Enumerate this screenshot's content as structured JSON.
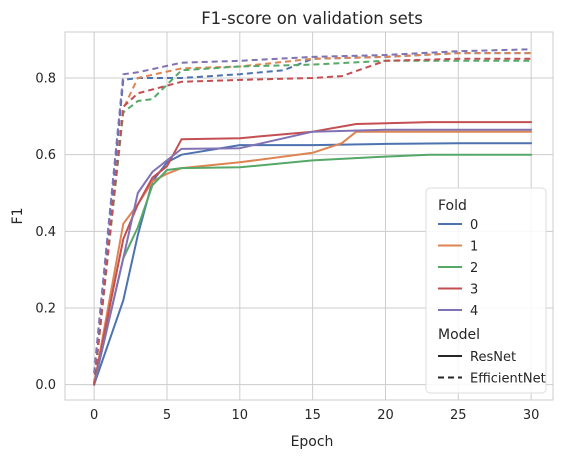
{
  "chart_data": {
    "type": "line",
    "title": "F1-score on validation sets",
    "xlabel": "Epoch",
    "ylabel": "F1",
    "xlim": [
      -2,
      31.5
    ],
    "ylim": [
      -0.04,
      0.92
    ],
    "xticks": [
      0,
      5,
      10,
      15,
      20,
      25,
      30
    ],
    "yticks": [
      0.0,
      0.2,
      0.4,
      0.6,
      0.8
    ],
    "ytick_labels": [
      "0.0",
      "0.2",
      "0.4",
      "0.6",
      "0.8"
    ],
    "grid": true,
    "legend": {
      "placement": "lower-right",
      "hue_title": "Fold",
      "style_title": "Model",
      "hue_entries": [
        "0",
        "1",
        "2",
        "3",
        "4"
      ],
      "style_entries": [
        "ResNet",
        "EfficientNet"
      ]
    },
    "colors": {
      "0": "#4c72b0",
      "1": "#dd8452",
      "2": "#55a868",
      "3": "#c44e52",
      "4": "#8172b3"
    },
    "series": [
      {
        "fold": "0",
        "model": "ResNet",
        "x": [
          0,
          2,
          3,
          4,
          5,
          6,
          10,
          15,
          20,
          25,
          30
        ],
        "y": [
          0.0,
          0.22,
          0.39,
          0.53,
          0.58,
          0.6,
          0.625,
          0.625,
          0.628,
          0.63,
          0.63
        ]
      },
      {
        "fold": "1",
        "model": "ResNet",
        "x": [
          0,
          2,
          3,
          4,
          5,
          6,
          10,
          15,
          17,
          18,
          25,
          30
        ],
        "y": [
          0.0,
          0.42,
          0.47,
          0.53,
          0.55,
          0.565,
          0.58,
          0.605,
          0.63,
          0.66,
          0.66,
          0.66
        ]
      },
      {
        "fold": "2",
        "model": "ResNet",
        "x": [
          0,
          2,
          3,
          4,
          5,
          6,
          10,
          15,
          20,
          23,
          30
        ],
        "y": [
          0.0,
          0.33,
          0.41,
          0.52,
          0.56,
          0.565,
          0.567,
          0.585,
          0.595,
          0.6,
          0.6
        ]
      },
      {
        "fold": "3",
        "model": "ResNet",
        "x": [
          0,
          2,
          3,
          4,
          5,
          6,
          10,
          15,
          18,
          23,
          30
        ],
        "y": [
          0.0,
          0.38,
          0.47,
          0.54,
          0.57,
          0.64,
          0.643,
          0.66,
          0.68,
          0.685,
          0.685
        ]
      },
      {
        "fold": "4",
        "model": "ResNet",
        "x": [
          0,
          2,
          3,
          4,
          5,
          6,
          10,
          15,
          20,
          25,
          30
        ],
        "y": [
          0.0,
          0.33,
          0.5,
          0.555,
          0.585,
          0.615,
          0.617,
          0.66,
          0.665,
          0.665,
          0.665
        ]
      },
      {
        "fold": "0",
        "model": "EfficientNet",
        "x": [
          0,
          2,
          3,
          6,
          10,
          13,
          15,
          20,
          25,
          30
        ],
        "y": [
          0.0,
          0.795,
          0.8,
          0.8,
          0.81,
          0.82,
          0.85,
          0.855,
          0.865,
          0.865
        ]
      },
      {
        "fold": "1",
        "model": "EfficientNet",
        "x": [
          0,
          2,
          3,
          6,
          10,
          15,
          20,
          25,
          30
        ],
        "y": [
          0.0,
          0.72,
          0.8,
          0.825,
          0.83,
          0.85,
          0.855,
          0.865,
          0.865
        ]
      },
      {
        "fold": "2",
        "model": "EfficientNet",
        "x": [
          0,
          2,
          3,
          4,
          6,
          10,
          15,
          20,
          25,
          30
        ],
        "y": [
          0.0,
          0.71,
          0.74,
          0.745,
          0.82,
          0.83,
          0.835,
          0.845,
          0.845,
          0.845
        ]
      },
      {
        "fold": "3",
        "model": "EfficientNet",
        "x": [
          0,
          2,
          3,
          4,
          6,
          10,
          15,
          17,
          20,
          25,
          30
        ],
        "y": [
          0.0,
          0.725,
          0.76,
          0.77,
          0.79,
          0.795,
          0.8,
          0.805,
          0.845,
          0.85,
          0.85
        ]
      },
      {
        "fold": "4",
        "model": "EfficientNet",
        "x": [
          0,
          2,
          3,
          6,
          10,
          15,
          20,
          25,
          30
        ],
        "y": [
          0.03,
          0.81,
          0.815,
          0.84,
          0.845,
          0.855,
          0.86,
          0.87,
          0.875
        ]
      }
    ]
  }
}
